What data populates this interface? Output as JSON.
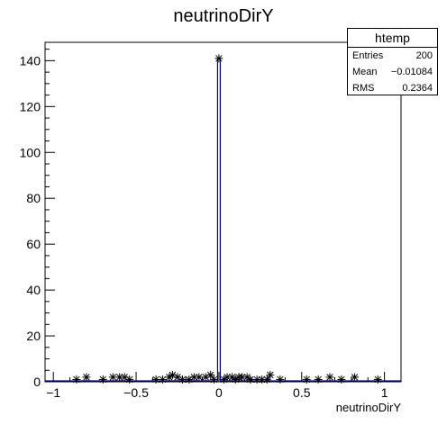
{
  "chart_data": {
    "type": "histogram",
    "title": "neutrinoDirY",
    "xlabel": "neutrinoDirY",
    "ylabel": "",
    "xlim": [
      -1.05,
      1.1
    ],
    "ylim": [
      0,
      148
    ],
    "xticks": [
      -1,
      -0.5,
      0,
      0.5,
      1
    ],
    "xtick_labels": [
      "−1",
      "−0.5",
      "0",
      "0.5",
      "1"
    ],
    "yticks": [
      0,
      20,
      40,
      60,
      80,
      100,
      120,
      140
    ],
    "ytick_labels": [
      "0",
      "20",
      "40",
      "60",
      "80",
      "100",
      "120",
      "140"
    ],
    "grid": false,
    "line_color": "#00008b",
    "peak": {
      "x": 0.0,
      "y": 141
    },
    "points": [
      {
        "x": -0.86,
        "y": 1
      },
      {
        "x": -0.8,
        "y": 2
      },
      {
        "x": -0.7,
        "y": 1
      },
      {
        "x": -0.64,
        "y": 2
      },
      {
        "x": -0.6,
        "y": 2
      },
      {
        "x": -0.57,
        "y": 2
      },
      {
        "x": -0.54,
        "y": 1
      },
      {
        "x": -0.38,
        "y": 1
      },
      {
        "x": -0.34,
        "y": 1
      },
      {
        "x": -0.3,
        "y": 2
      },
      {
        "x": -0.28,
        "y": 3
      },
      {
        "x": -0.25,
        "y": 2
      },
      {
        "x": -0.22,
        "y": 1
      },
      {
        "x": -0.18,
        "y": 1
      },
      {
        "x": -0.15,
        "y": 2
      },
      {
        "x": -0.12,
        "y": 2
      },
      {
        "x": -0.08,
        "y": 2
      },
      {
        "x": -0.05,
        "y": 3
      },
      {
        "x": -0.03,
        "y": 1
      },
      {
        "x": 0.03,
        "y": 1
      },
      {
        "x": 0.05,
        "y": 2
      },
      {
        "x": 0.08,
        "y": 2
      },
      {
        "x": 0.1,
        "y": 1
      },
      {
        "x": 0.12,
        "y": 2
      },
      {
        "x": 0.14,
        "y": 2
      },
      {
        "x": 0.17,
        "y": 2
      },
      {
        "x": 0.19,
        "y": 1
      },
      {
        "x": 0.23,
        "y": 1
      },
      {
        "x": 0.26,
        "y": 1
      },
      {
        "x": 0.29,
        "y": 1
      },
      {
        "x": 0.31,
        "y": 3
      },
      {
        "x": 0.37,
        "y": 1
      },
      {
        "x": 0.53,
        "y": 1
      },
      {
        "x": 0.6,
        "y": 1
      },
      {
        "x": 0.67,
        "y": 2
      },
      {
        "x": 0.74,
        "y": 1
      },
      {
        "x": 0.82,
        "y": 2
      },
      {
        "x": 0.96,
        "y": 1
      }
    ]
  },
  "stats": {
    "title": "htemp",
    "rows": [
      {
        "label": "Entries",
        "value": "200"
      },
      {
        "label": "Mean",
        "value": "−0.01084"
      },
      {
        "label": "RMS",
        "value": "0.2364"
      }
    ]
  }
}
